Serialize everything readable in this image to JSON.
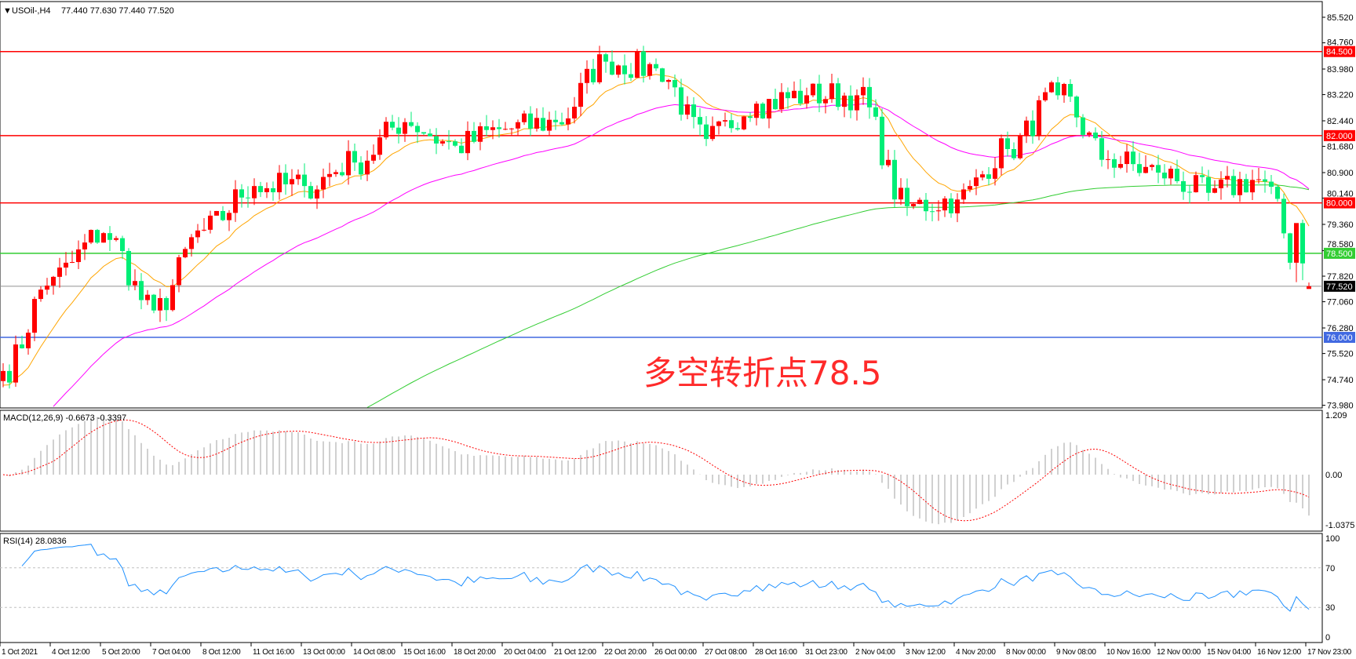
{
  "header": {
    "symbol": "USOil-,H4",
    "ohlc": "77.440 77.630 77.440 77.520"
  },
  "macd_label": "MACD(12,26,9) -0.6673 -0.3397",
  "rsi_label": "RSI(14) 28.0836",
  "annotation": {
    "text": "多空转折点78.5",
    "color": "#ff2a2a"
  },
  "colors": {
    "bull": "#ff0000",
    "bear": "#00ee76",
    "ma_fast": "#ffa500",
    "ma_mid": "#ff00ff",
    "ma_slow": "#32cd32",
    "macd_hist": "#c0c0c0",
    "macd_signal": "#ff0000",
    "rsi": "#1e90ff"
  },
  "chart_data": {
    "type": "candlestick",
    "symbol": "USOil-",
    "timeframe": "H4",
    "x_labels": [
      "1 Oct 2021",
      "4 Oct 12:00",
      "5 Oct 20:00",
      "7 Oct 04:00",
      "8 Oct 12:00",
      "11 Oct 16:00",
      "13 Oct 00:00",
      "14 Oct 08:00",
      "15 Oct 16:00",
      "18 Oct 20:00",
      "20 Oct 04:00",
      "21 Oct 12:00",
      "22 Oct 20:00",
      "26 Oct 00:00",
      "27 Oct 08:00",
      "28 Oct 16:00",
      "31 Oct 23:00",
      "2 Nov 04:00",
      "3 Nov 12:00",
      "4 Nov 20:00",
      "8 Nov 00:00",
      "9 Nov 08:00",
      "10 Nov 16:00",
      "12 Nov 00:00",
      "15 Nov 04:00",
      "16 Nov 12:00",
      "17 Nov 23:00"
    ],
    "approx_close_at_labels": [
      75.0,
      77.8,
      79.1,
      76.8,
      79.2,
      80.5,
      80.5,
      81.2,
      82.4,
      81.7,
      82.2,
      82.4,
      84.2,
      84.0,
      81.9,
      82.95,
      83.2,
      83.2,
      79.9,
      80.1,
      81.6,
      83.2,
      81.3,
      80.9,
      80.3,
      80.7,
      77.52
    ],
    "last_bars": [
      {
        "open": 79.4,
        "high": 79.5,
        "low": 77.7,
        "close": 78.2
      },
      {
        "open": 77.44,
        "high": 77.63,
        "low": 77.44,
        "close": 77.52
      }
    ],
    "price_axis": [
      "85.520",
      "84.760",
      "83.980",
      "83.220",
      "82.440",
      "81.680",
      "80.900",
      "80.140",
      "79.360",
      "78.580",
      "77.820",
      "77.060",
      "76.280",
      "75.520",
      "74.740",
      "73.980"
    ],
    "price_range": [
      73.98,
      85.52
    ],
    "levels": [
      {
        "price": 84.5,
        "label": "84.500",
        "color": "#ff0000"
      },
      {
        "price": 82.0,
        "label": "82.000",
        "color": "#ff0000"
      },
      {
        "price": 80.0,
        "label": "80.000",
        "color": "#ff0000"
      },
      {
        "price": 78.5,
        "label": "78.500",
        "color": "#32cd32"
      },
      {
        "price": 76.0,
        "label": "76.000",
        "color": "#4169e1"
      },
      {
        "price": 77.52,
        "label": "77.520",
        "color": "#000000"
      }
    ],
    "macd": {
      "macd": -0.6673,
      "signal": -0.3397,
      "axis": [
        "1.209",
        "0.00",
        "-1.0375"
      ],
      "range": [
        -1.0375,
        1.209
      ]
    },
    "rsi": {
      "value": 28.0836,
      "axis": [
        "100",
        "70",
        "30",
        "0"
      ],
      "levels": [
        70,
        30
      ]
    }
  }
}
